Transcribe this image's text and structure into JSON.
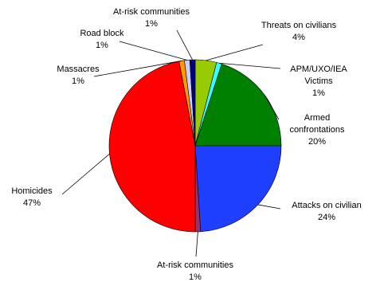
{
  "chart_data": {
    "type": "pie",
    "categories": [
      "Threats on civilians",
      "APM/UXO/IEA Victims",
      "Armed confrontations",
      "Attacks on civilian",
      "At-risk communities",
      "Homicides",
      "Massacres",
      "Road block",
      "At-risk communities"
    ],
    "values": [
      4,
      1,
      20,
      24,
      1,
      47,
      1,
      1,
      1
    ],
    "value_labels": [
      "4%",
      "1%",
      "20%",
      "24%",
      "1%",
      "47%",
      "1%",
      "1%",
      "1%"
    ],
    "colors": [
      "#99cc00",
      "#33ffff",
      "#008000",
      "#1f3fff",
      "#993366",
      "#ff0000",
      "#ff9900",
      "#ccccff",
      "#000080"
    ]
  }
}
